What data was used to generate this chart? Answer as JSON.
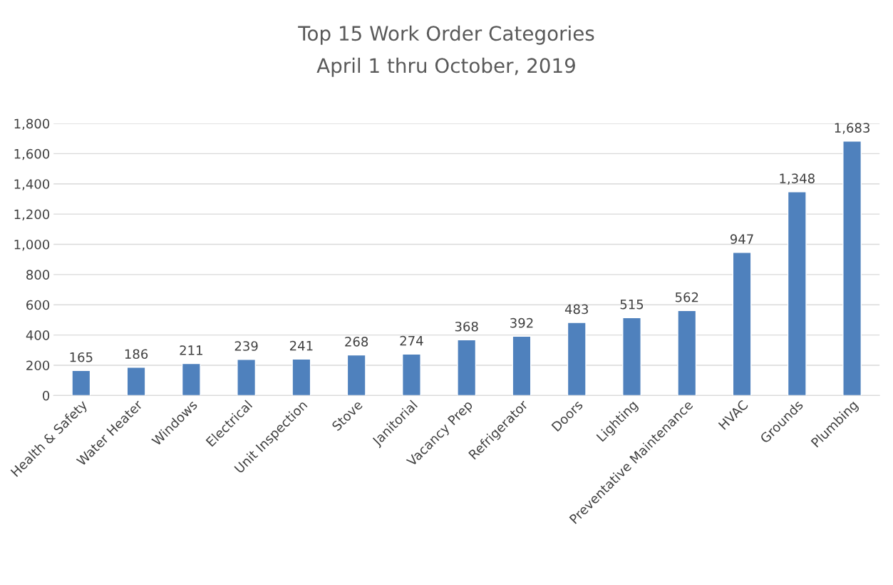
{
  "chart_data": {
    "type": "bar",
    "title": "Top 15 Work Order Categories",
    "subtitle": "April 1 thru October, 2019",
    "categories": [
      "Health & Safety",
      "Water Heater",
      "Windows",
      "Electrical",
      "Unit Inspection",
      "Stove",
      "Janitorial",
      "Vacancy Prep",
      "Refrigerator",
      "Doors",
      "Lighting",
      "Preventative Maintenance",
      "HVAC",
      "Grounds",
      "Plumbing"
    ],
    "values": [
      165,
      186,
      211,
      239,
      241,
      268,
      274,
      368,
      392,
      483,
      515,
      562,
      947,
      1348,
      1683
    ],
    "value_labels": [
      "165",
      "186",
      "211",
      "239",
      "241",
      "268",
      "274",
      "368",
      "392",
      "483",
      "515",
      "562",
      "947",
      "1,348",
      "1,683"
    ],
    "color": "#4f81bd",
    "ylim": [
      0,
      1800
    ],
    "yticks": [
      0,
      200,
      400,
      600,
      800,
      {
        "value": 1000,
        "label": "1,000"
      },
      {
        "value": 1200,
        "label": "1,200"
      },
      {
        "value": 1400,
        "label": "1,400"
      },
      {
        "value": 1600,
        "label": "1,600"
      },
      {
        "value": 1800,
        "label": "1,800"
      }
    ],
    "grid": "y"
  }
}
